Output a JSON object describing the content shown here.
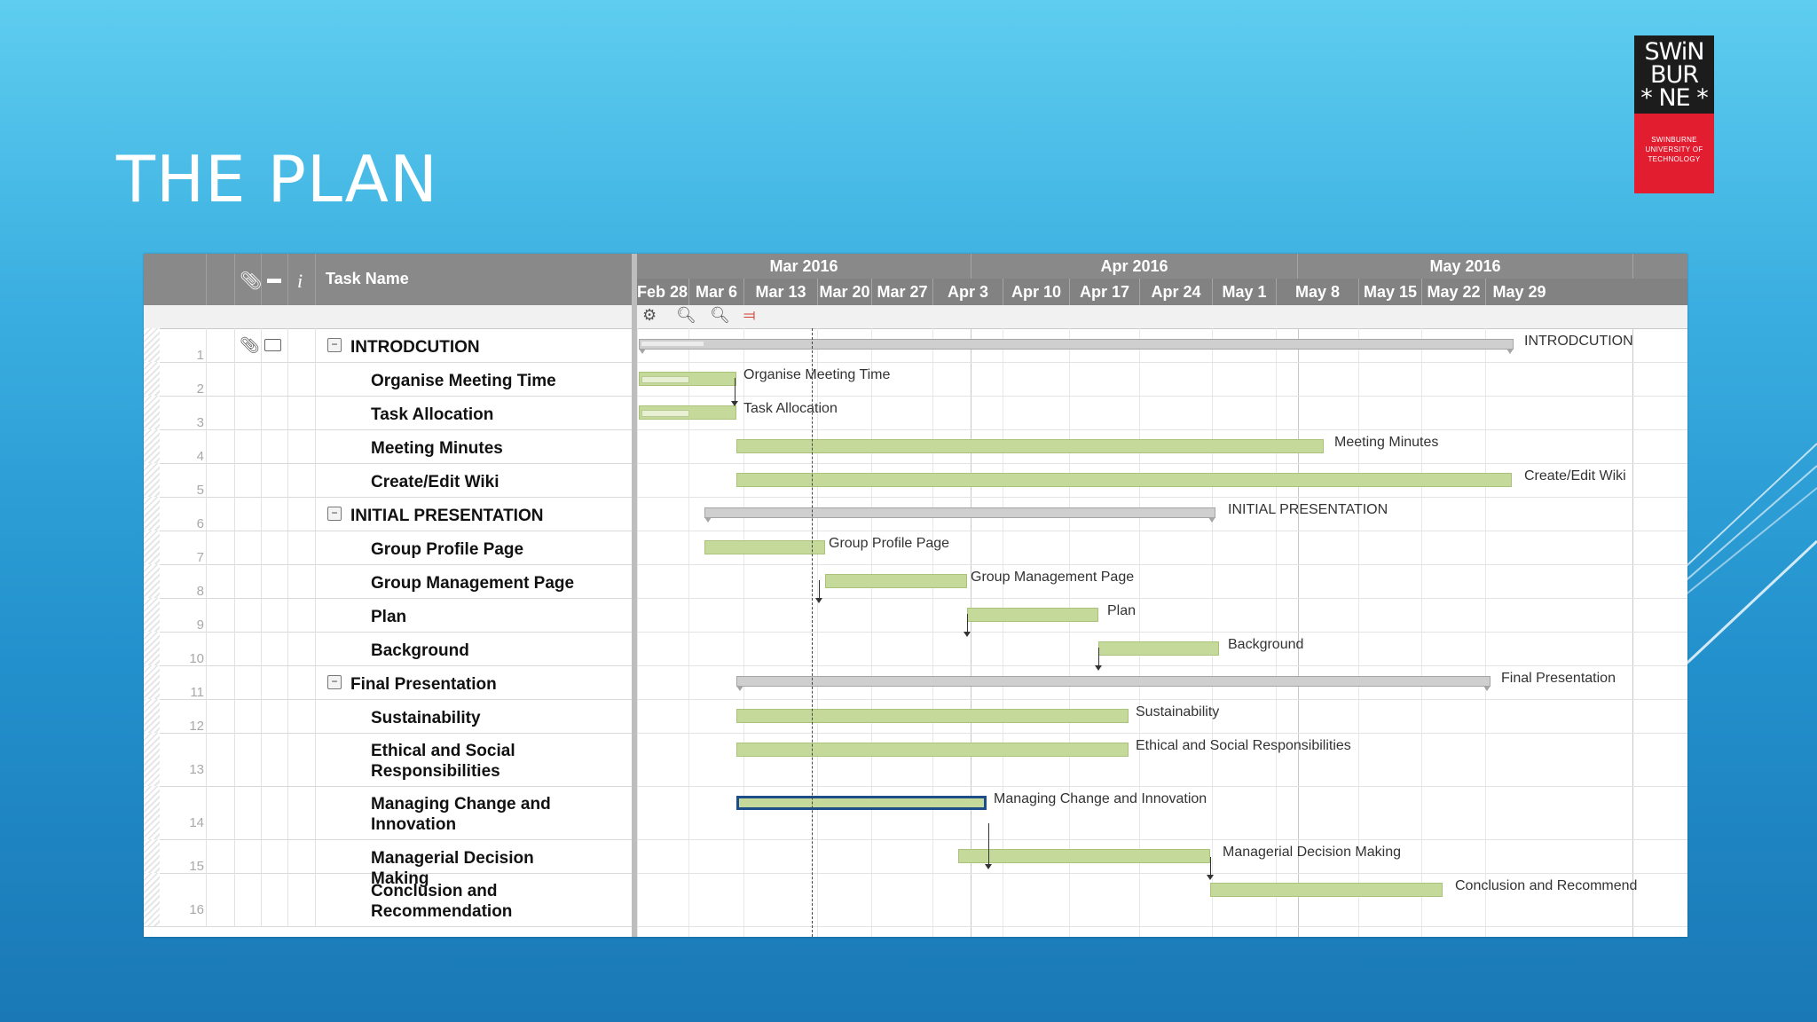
{
  "slide": {
    "title": "THE PLAN"
  },
  "logo": {
    "line1": "SWiN",
    "line2": "BUR",
    "line3": "* NE *",
    "sub1": "SWINBURNE",
    "sub2": "UNIVERSITY OF",
    "sub3": "TECHNOLOGY"
  },
  "gantt": {
    "header": {
      "task_name": "Task Name",
      "info_icon": "i"
    },
    "months": [
      "Mar 2016",
      "Apr 2016",
      "May 2016"
    ],
    "weeks": [
      "Feb 28",
      "Mar 6",
      "Mar 13",
      "Mar 20",
      "Mar 27",
      "Apr 3",
      "Apr 10",
      "Apr 17",
      "Apr 24",
      "May 1",
      "May 8",
      "May 15",
      "May 22",
      "May 29"
    ],
    "toolbar_icons": [
      "gear-icon",
      "zoom-out-icon",
      "zoom-in-icon",
      "critical-path-icon"
    ],
    "rows": [
      {
        "num": "1",
        "name": "INTRODCUTION",
        "summary": true,
        "label": "INTRODCUTION"
      },
      {
        "num": "2",
        "name": "Organise Meeting Time",
        "label": "Organise Meeting Time"
      },
      {
        "num": "3",
        "name": "Task Allocation",
        "label": "Task Allocation"
      },
      {
        "num": "4",
        "name": "Meeting Minutes",
        "label": "Meeting Minutes"
      },
      {
        "num": "5",
        "name": "Create/Edit Wiki",
        "label": "Create/Edit Wiki"
      },
      {
        "num": "6",
        "name": "INITIAL PRESENTATION",
        "summary": true,
        "label": "INITIAL PRESENTATION"
      },
      {
        "num": "7",
        "name": "Group Profile Page",
        "label": "Group Profile Page"
      },
      {
        "num": "8",
        "name": "Group Management Page",
        "label": "Group Management Page"
      },
      {
        "num": "9",
        "name": "Plan",
        "label": "Plan"
      },
      {
        "num": "10",
        "name": "Background",
        "label": "Background"
      },
      {
        "num": "11",
        "name": "Final Presentation",
        "summary": true,
        "label": "Final Presentation"
      },
      {
        "num": "12",
        "name": "Sustainability",
        "label": "Sustainability"
      },
      {
        "num": "13",
        "name": "Ethical and Social Responsibilities",
        "label": "Ethical and Social Responsibilities"
      },
      {
        "num": "14",
        "name": "Managing Change and Innovation",
        "label": "Managing Change and Innovation"
      },
      {
        "num": "15",
        "name": "Managerial Decision Making",
        "label": "Managerial Decision Making"
      },
      {
        "num": "16",
        "name": "Conclusion and Recommendation",
        "label": "Conclusion and Recommend"
      }
    ]
  }
}
